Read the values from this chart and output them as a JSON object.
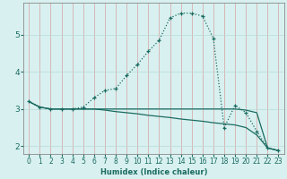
{
  "xlabel": "Humidex (Indice chaleur)",
  "bg_color": "#d8f0f0",
  "grid_color": "#b8dada",
  "line_color": "#1a6b60",
  "xlim": [
    -0.5,
    23.5
  ],
  "ylim": [
    1.8,
    5.85
  ],
  "yticks": [
    2,
    3,
    4,
    5
  ],
  "xticks": [
    0,
    1,
    2,
    3,
    4,
    5,
    6,
    7,
    8,
    9,
    10,
    11,
    12,
    13,
    14,
    15,
    16,
    17,
    18,
    19,
    20,
    21,
    22,
    23
  ],
  "curve_dotted_x": [
    0,
    1,
    2,
    3,
    4,
    5,
    6,
    7,
    8,
    9,
    10,
    11,
    12,
    13,
    14,
    15,
    16,
    17,
    18,
    19,
    20,
    21,
    22,
    23
  ],
  "curve_dotted_y": [
    3.2,
    3.05,
    3.0,
    3.0,
    3.0,
    3.05,
    3.3,
    3.5,
    3.55,
    3.9,
    4.2,
    4.55,
    4.85,
    5.45,
    5.58,
    5.58,
    5.5,
    4.9,
    2.5,
    3.1,
    2.9,
    2.4,
    1.95,
    1.88
  ],
  "curve_solid1_x": [
    0,
    1,
    2,
    3,
    4,
    5,
    6,
    7,
    8,
    9,
    10,
    11,
    12,
    13,
    14,
    15,
    16,
    17,
    18,
    19,
    20,
    21,
    22,
    23
  ],
  "curve_solid1_y": [
    3.2,
    3.05,
    3.0,
    3.0,
    3.0,
    3.0,
    3.0,
    2.97,
    2.93,
    2.9,
    2.87,
    2.83,
    2.8,
    2.77,
    2.73,
    2.7,
    2.67,
    2.63,
    2.6,
    2.57,
    2.5,
    2.3,
    1.95,
    1.88
  ],
  "curve_solid2_x": [
    0,
    1,
    2,
    3,
    4,
    5,
    6,
    7,
    8,
    9,
    10,
    11,
    12,
    13,
    14,
    15,
    16,
    17,
    18,
    19,
    20,
    21,
    22,
    23
  ],
  "curve_solid2_y": [
    3.2,
    3.05,
    3.0,
    3.0,
    3.0,
    3.0,
    3.0,
    3.0,
    3.0,
    3.0,
    3.0,
    3.0,
    3.0,
    3.0,
    3.0,
    3.0,
    3.0,
    3.0,
    3.0,
    3.0,
    2.97,
    2.9,
    1.95,
    1.88
  ]
}
